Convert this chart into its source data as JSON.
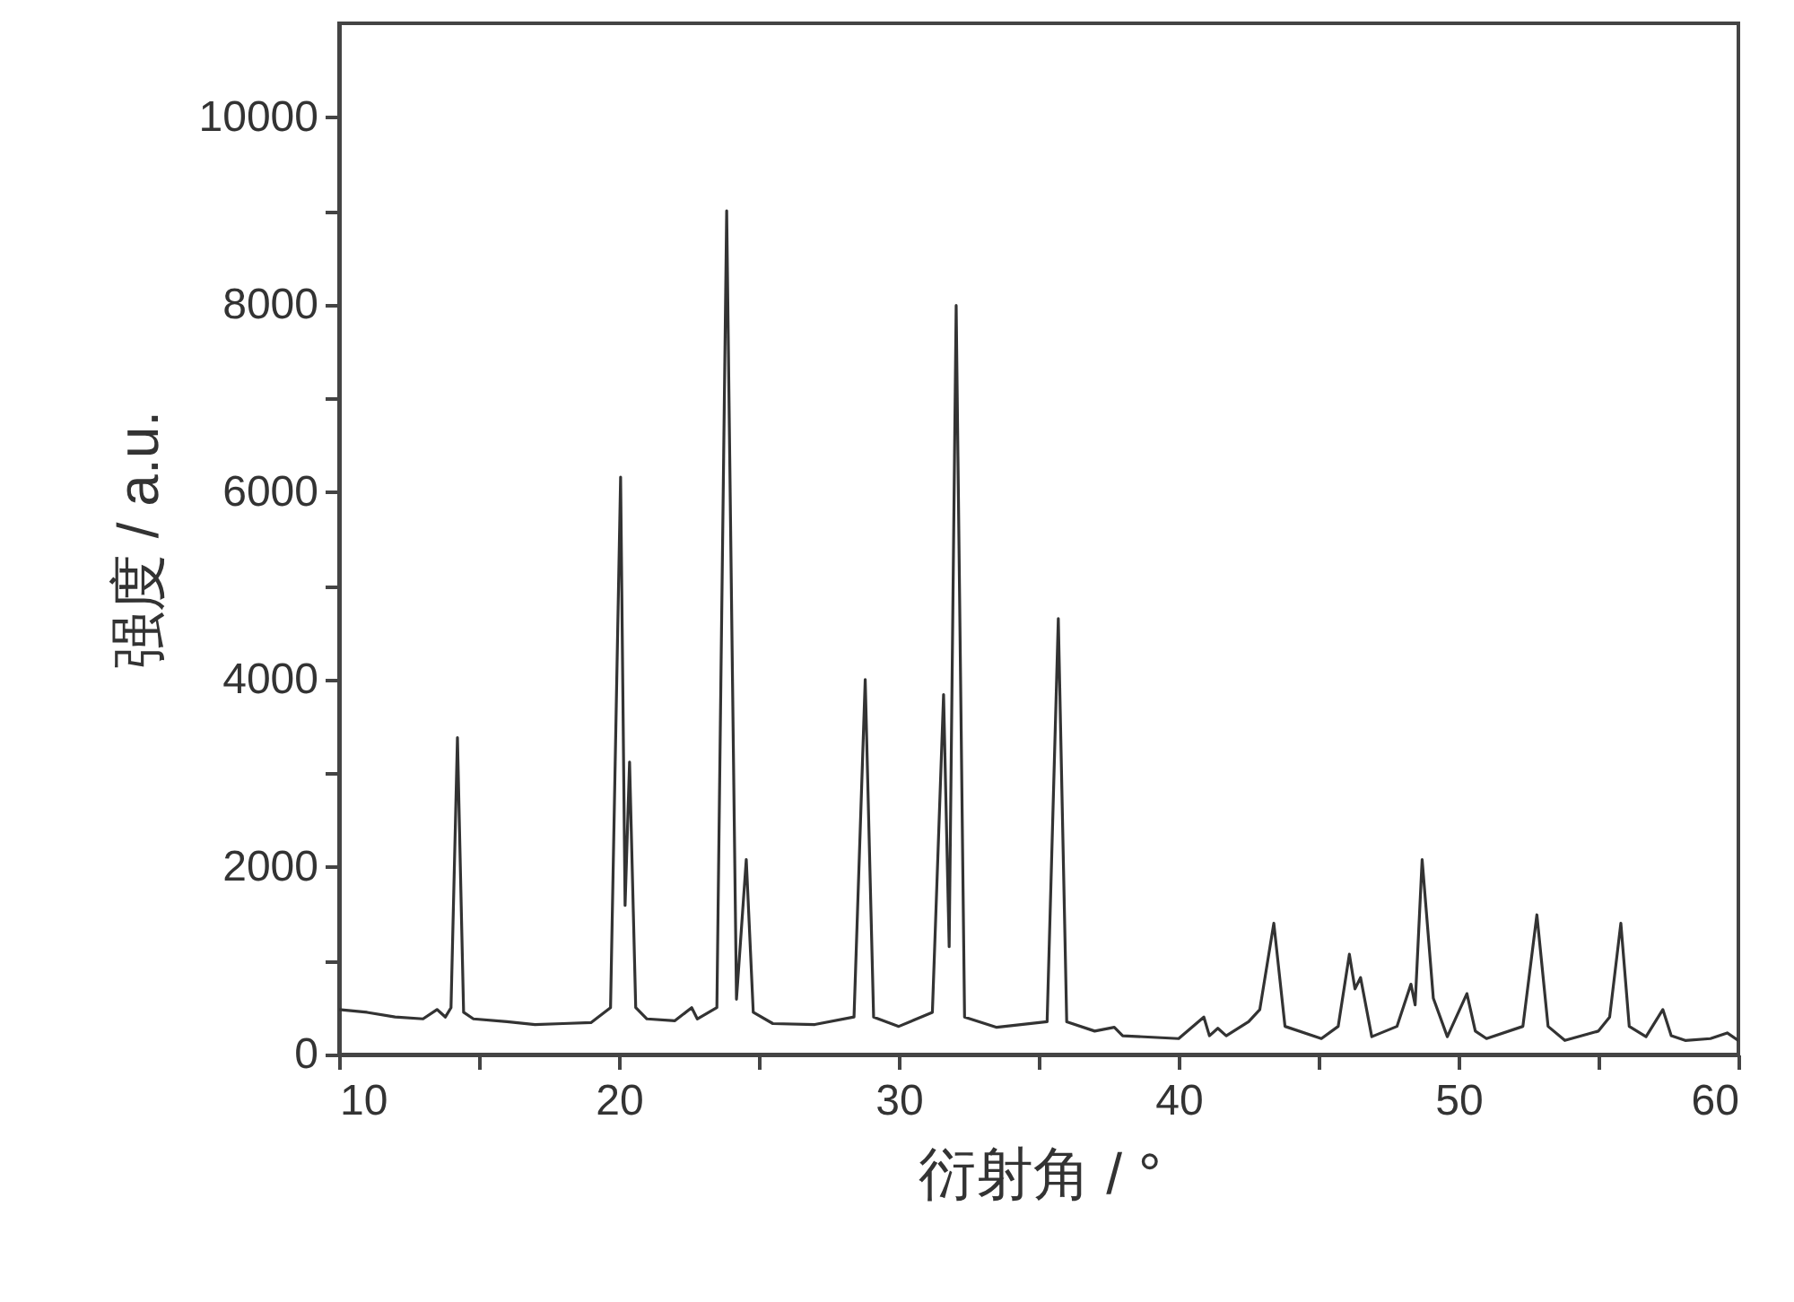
{
  "chart_data": {
    "type": "line",
    "xlabel": "衍射角 / °",
    "ylabel": "强度 / a.u.",
    "xlim": [
      10,
      60
    ],
    "ylim": [
      0,
      11000
    ],
    "xticks": [
      10,
      {
        "value": 15,
        "label": null
      },
      20,
      {
        "value": 25,
        "label": null
      },
      30,
      {
        "value": 35,
        "label": null
      },
      40,
      {
        "value": 45,
        "label": null
      },
      50,
      {
        "value": 55,
        "label": null
      },
      60
    ],
    "yticks": [
      0,
      {
        "value": 1000,
        "label": null
      },
      2000,
      {
        "value": 3000,
        "label": null
      },
      4000,
      {
        "value": 5000,
        "label": null
      },
      6000,
      {
        "value": 7000,
        "label": null
      },
      8000,
      {
        "value": 9000,
        "label": null
      },
      10000
    ],
    "grid": false,
    "marker": "none",
    "line_style": "solid",
    "series": [
      {
        "color": "#333333",
        "x": [
          10,
          11,
          12,
          13,
          13.5,
          13.8,
          14.0,
          14.23,
          14.45,
          14.8,
          16,
          17,
          18,
          19,
          19.7,
          20.06,
          20.22,
          20.38,
          20.6,
          21,
          22,
          22.6,
          22.8,
          23.5,
          23.85,
          24.2,
          24.55,
          24.8,
          25.5,
          27,
          28.4,
          28.8,
          29.1,
          30,
          31.2,
          31.6,
          31.8,
          32.05,
          32.35,
          33.5,
          35.3,
          35.7,
          36.0,
          37,
          37.7,
          38,
          40,
          40.9,
          41.1,
          41.4,
          41.7,
          42.5,
          42.9,
          43.4,
          43.8,
          45.1,
          45.7,
          46.1,
          46.3,
          46.5,
          46.9,
          47.8,
          48.3,
          48.45,
          48.7,
          49.1,
          49.6,
          50.3,
          50.6,
          51,
          52.3,
          52.8,
          53.2,
          53.8,
          55.0,
          55.4,
          55.8,
          56.1,
          56.7,
          57.3,
          57.6,
          58.1,
          59,
          59.6,
          60
        ],
        "values": [
          480,
          450,
          400,
          380,
          480,
          400,
          500,
          3380,
          450,
          380,
          350,
          320,
          330,
          340,
          500,
          6160,
          1590,
          3120,
          500,
          380,
          360,
          500,
          380,
          500,
          9000,
          590,
          2080,
          450,
          330,
          320,
          400,
          4000,
          400,
          300,
          450,
          3840,
          1150,
          7990,
          400,
          290,
          350,
          4650,
          350,
          250,
          290,
          200,
          170,
          400,
          200,
          280,
          200,
          350,
          480,
          1400,
          300,
          170,
          300,
          1070,
          700,
          820,
          190,
          300,
          750,
          530,
          2080,
          600,
          190,
          650,
          250,
          170,
          300,
          1490,
          300,
          150,
          250,
          400,
          1400,
          300,
          190,
          480,
          200,
          150,
          170,
          230,
          150
        ]
      }
    ]
  }
}
